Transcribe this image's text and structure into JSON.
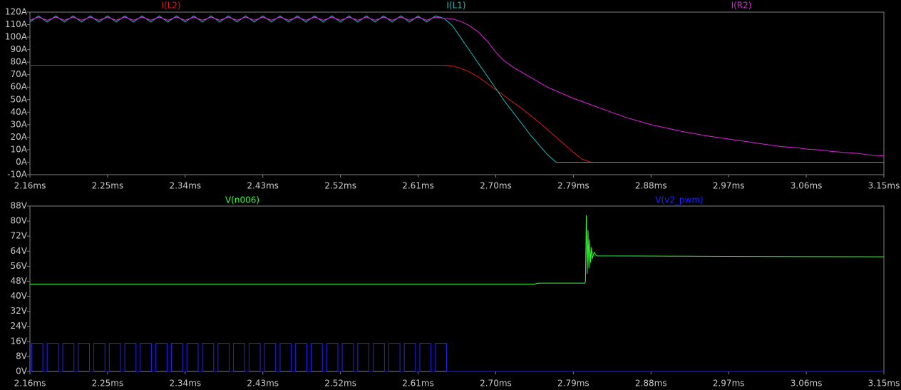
{
  "chart_data": [
    {
      "type": "line",
      "x": [
        2.16,
        2.17,
        2.18,
        2.19,
        2.2,
        2.21,
        2.22,
        2.23,
        2.24,
        2.25,
        2.26,
        2.27,
        2.28,
        2.29,
        2.3,
        2.31,
        2.32,
        2.33,
        2.34,
        2.35,
        2.36,
        2.37,
        2.38,
        2.39,
        2.4,
        2.41,
        2.42,
        2.43,
        2.44,
        2.45,
        2.46,
        2.47,
        2.48,
        2.49,
        2.5,
        2.51,
        2.52,
        2.53,
        2.54,
        2.55,
        2.56,
        2.57,
        2.58,
        2.59,
        2.6,
        2.61,
        2.62,
        2.63,
        2.64,
        2.65,
        2.66,
        2.67,
        2.68,
        2.69,
        2.7,
        2.71,
        2.72,
        2.73,
        2.74,
        2.75,
        2.76,
        2.77,
        2.78,
        2.79,
        2.8,
        2.81,
        2.82,
        2.83,
        2.84,
        2.85,
        2.86,
        2.87,
        2.88,
        2.89,
        2.9,
        2.91,
        2.92,
        2.93,
        2.94,
        2.95,
        2.96,
        2.97,
        2.98,
        2.99,
        3.0,
        3.01,
        3.02,
        3.03,
        3.04,
        3.05,
        3.06,
        3.07,
        3.08,
        3.09,
        3.1,
        3.11,
        3.12,
        3.13,
        3.14,
        3.15
      ],
      "series": [
        {
          "name": "I(L2)",
          "color": "#e01818",
          "values": [
            77.5,
            77.5,
            77.5,
            77.5,
            77.5,
            77.5,
            77.5,
            77.5,
            77.5,
            77.5,
            77.5,
            77.5,
            77.5,
            77.5,
            77.5,
            77.5,
            77.5,
            77.5,
            77.5,
            77.5,
            77.5,
            77.5,
            77.5,
            77.5,
            77.5,
            77.5,
            77.5,
            77.5,
            77.5,
            77.5,
            77.5,
            77.5,
            77.5,
            77.5,
            77.5,
            77.5,
            77.5,
            77.5,
            77.5,
            77.5,
            77.5,
            77.5,
            77.5,
            77.5,
            77.5,
            77.5,
            77.5,
            77.5,
            77.5,
            77,
            75,
            72,
            68,
            63,
            58,
            53,
            48,
            43,
            37.5,
            32,
            26,
            20,
            14,
            8,
            2.5,
            0,
            0,
            0,
            0,
            0,
            0,
            0,
            0,
            0,
            0,
            0,
            0,
            0,
            0,
            0,
            0,
            0,
            0,
            0,
            0,
            0,
            0,
            0,
            0,
            0,
            0,
            0,
            0,
            0,
            0,
            0,
            0,
            0,
            0,
            0
          ]
        },
        {
          "name": "I(L1)",
          "color": "#20b8b8",
          "values": [
            112,
            117,
            112,
            117,
            112,
            117,
            112,
            117,
            112,
            117,
            112,
            117,
            112,
            117,
            112,
            117,
            112,
            117,
            112,
            117,
            112,
            117,
            112,
            117,
            112,
            117,
            112,
            117,
            112,
            117,
            112,
            117,
            112,
            117,
            112,
            117,
            112,
            117,
            112,
            117,
            112,
            117,
            112,
            117,
            112,
            117,
            112,
            117,
            115,
            109,
            99,
            89,
            79,
            69,
            59,
            49,
            40,
            31,
            22,
            14,
            6,
            0,
            0,
            0,
            0,
            0,
            0,
            0,
            0,
            0,
            0,
            0,
            0,
            0,
            0,
            0,
            0,
            0,
            0,
            0,
            0,
            0,
            0,
            0,
            0,
            0,
            0,
            0,
            0,
            0,
            0,
            0,
            0,
            0,
            0,
            0,
            0,
            0,
            0,
            0
          ]
        },
        {
          "name": "I(R2)",
          "color": "#e020e0",
          "values": [
            113.5,
            116,
            113.5,
            116,
            113.5,
            116,
            113.5,
            116,
            113.5,
            116,
            113.5,
            116,
            113.5,
            116,
            113.5,
            116,
            113.5,
            116,
            113.5,
            116,
            113.5,
            116,
            113.5,
            116,
            113.5,
            116,
            113.5,
            116,
            113.5,
            116,
            113.5,
            116,
            113.5,
            116,
            113.5,
            116,
            113.5,
            116,
            113.5,
            116,
            113.5,
            116,
            113.5,
            116,
            113.5,
            116,
            113.5,
            116,
            115,
            114.5,
            112.5,
            109,
            104,
            97,
            88,
            81,
            76,
            72,
            68,
            64,
            60,
            57,
            54,
            51,
            48.5,
            46,
            43.5,
            41,
            38.5,
            36,
            34,
            32,
            30,
            28.5,
            27,
            25.5,
            24,
            23,
            21.5,
            20.5,
            19.5,
            18.5,
            17.5,
            16.5,
            15.5,
            14.5,
            13.5,
            12.5,
            12,
            11.5,
            10.5,
            10,
            9.5,
            8.5,
            8,
            7.5,
            7,
            6,
            5.5,
            5
          ]
        }
      ],
      "xlim": [
        2.16,
        3.15
      ],
      "xticks": [
        {
          "value": 2.16,
          "label": "2.16ms"
        },
        {
          "value": 2.25,
          "label": "2.25ms"
        },
        {
          "value": 2.34,
          "label": "2.34ms"
        },
        {
          "value": 2.43,
          "label": "2.43ms"
        },
        {
          "value": 2.52,
          "label": "2.52ms"
        },
        {
          "value": 2.61,
          "label": "2.61ms"
        },
        {
          "value": 2.7,
          "label": "2.70ms"
        },
        {
          "value": 2.79,
          "label": "2.79ms"
        },
        {
          "value": 2.88,
          "label": "2.88ms"
        },
        {
          "value": 2.97,
          "label": "2.97ms"
        },
        {
          "value": 3.06,
          "label": "3.06ms"
        },
        {
          "value": 3.15,
          "label": "3.15ms"
        }
      ],
      "ylim": [
        -10,
        120
      ],
      "yticks": [
        {
          "value": -10,
          "label": "-10A"
        },
        {
          "value": 0,
          "label": "0A"
        },
        {
          "value": 10,
          "label": "10A"
        },
        {
          "value": 20,
          "label": "20A"
        },
        {
          "value": 30,
          "label": "30A"
        },
        {
          "value": 40,
          "label": "40A"
        },
        {
          "value": 50,
          "label": "50A"
        },
        {
          "value": 60,
          "label": "60A"
        },
        {
          "value": 70,
          "label": "70A"
        },
        {
          "value": 80,
          "label": "80A"
        },
        {
          "value": 90,
          "label": "90A"
        },
        {
          "value": 100,
          "label": "100A"
        },
        {
          "value": 110,
          "label": "110A"
        },
        {
          "value": 120,
          "label": "120A"
        }
      ],
      "grid": false
    },
    {
      "type": "line",
      "series": [
        {
          "name": "V(n006)",
          "color": "#30ff30",
          "x": [
            2.16,
            2.745,
            2.75,
            2.8035,
            2.804,
            2.805,
            2.806,
            2.807,
            2.808,
            2.809,
            2.81,
            2.811,
            2.812,
            2.814,
            2.817,
            3.15
          ],
          "values": [
            46.5,
            46.5,
            47,
            47,
            48,
            83,
            52,
            75,
            55,
            70,
            58,
            66,
            60,
            63.5,
            61.5,
            61
          ]
        },
        {
          "name": "V(v2_pwm)",
          "color": "#2020ff",
          "x": [
            2.16,
            2.162,
            2.162,
            2.175,
            2.175,
            2.18,
            2.18,
            2.193,
            2.193,
            2.198,
            2.198,
            2.211,
            2.211,
            2.216,
            2.216,
            2.229,
            2.229,
            2.234,
            2.234,
            2.247,
            2.247,
            2.252,
            2.252,
            2.265,
            2.265,
            2.27,
            2.27,
            2.283,
            2.283,
            2.288,
            2.288,
            2.301,
            2.301,
            2.306,
            2.306,
            2.319,
            2.319,
            2.324,
            2.324,
            2.337,
            2.337,
            2.342,
            2.342,
            2.355,
            2.355,
            2.36,
            2.36,
            2.373,
            2.373,
            2.378,
            2.378,
            2.391,
            2.391,
            2.396,
            2.396,
            2.409,
            2.409,
            2.414,
            2.414,
            2.427,
            2.427,
            2.432,
            2.432,
            2.445,
            2.445,
            2.45,
            2.45,
            2.463,
            2.463,
            2.468,
            2.468,
            2.481,
            2.481,
            2.486,
            2.486,
            2.499,
            2.499,
            2.504,
            2.504,
            2.517,
            2.517,
            2.522,
            2.522,
            2.535,
            2.535,
            2.54,
            2.54,
            2.553,
            2.553,
            2.558,
            2.558,
            2.571,
            2.571,
            2.576,
            2.576,
            2.589,
            2.589,
            2.594,
            2.594,
            2.607,
            2.607,
            2.612,
            2.612,
            2.625,
            2.625,
            2.63,
            2.63,
            2.643,
            2.643,
            3.15
          ],
          "values": [
            0,
            0,
            15,
            15,
            0,
            0,
            15,
            15,
            0,
            0,
            15,
            15,
            0,
            0,
            15,
            15,
            0,
            0,
            15,
            15,
            0,
            0,
            15,
            15,
            0,
            0,
            15,
            15,
            0,
            0,
            15,
            15,
            0,
            0,
            15,
            15,
            0,
            0,
            15,
            15,
            0,
            0,
            15,
            15,
            0,
            0,
            15,
            15,
            0,
            0,
            15,
            15,
            0,
            0,
            15,
            15,
            0,
            0,
            15,
            15,
            0,
            0,
            15,
            15,
            0,
            0,
            15,
            15,
            0,
            0,
            15,
            15,
            0,
            0,
            15,
            15,
            0,
            0,
            15,
            15,
            0,
            0,
            15,
            15,
            0,
            0,
            15,
            15,
            0,
            0,
            15,
            15,
            0,
            0,
            15,
            15,
            0,
            0,
            15,
            15,
            0,
            0,
            15,
            15,
            0,
            0,
            15,
            15,
            0,
            0
          ]
        }
      ],
      "xlim": [
        2.16,
        3.15
      ],
      "xticks": [
        {
          "value": 2.16,
          "label": "2.16ms"
        },
        {
          "value": 2.25,
          "label": "2.25ms"
        },
        {
          "value": 2.34,
          "label": "2.34ms"
        },
        {
          "value": 2.43,
          "label": "2.43ms"
        },
        {
          "value": 2.52,
          "label": "2.52ms"
        },
        {
          "value": 2.61,
          "label": "2.61ms"
        },
        {
          "value": 2.7,
          "label": "2.70ms"
        },
        {
          "value": 2.79,
          "label": "2.79ms"
        },
        {
          "value": 2.88,
          "label": "2.88ms"
        },
        {
          "value": 2.97,
          "label": "2.97ms"
        },
        {
          "value": 3.06,
          "label": "3.06ms"
        },
        {
          "value": 3.15,
          "label": "3.15ms"
        }
      ],
      "ylim": [
        0,
        88
      ],
      "yticks": [
        {
          "value": 0,
          "label": "0V"
        },
        {
          "value": 8,
          "label": "8V"
        },
        {
          "value": 16,
          "label": "16V"
        },
        {
          "value": 24,
          "label": "24V"
        },
        {
          "value": 32,
          "label": "32V"
        },
        {
          "value": 40,
          "label": "40V"
        },
        {
          "value": 48,
          "label": "48V"
        },
        {
          "value": 56,
          "label": "56V"
        },
        {
          "value": 64,
          "label": "64V"
        },
        {
          "value": 72,
          "label": "72V"
        },
        {
          "value": 80,
          "label": "80V"
        },
        {
          "value": 88,
          "label": "88V"
        }
      ],
      "grid": false
    }
  ]
}
